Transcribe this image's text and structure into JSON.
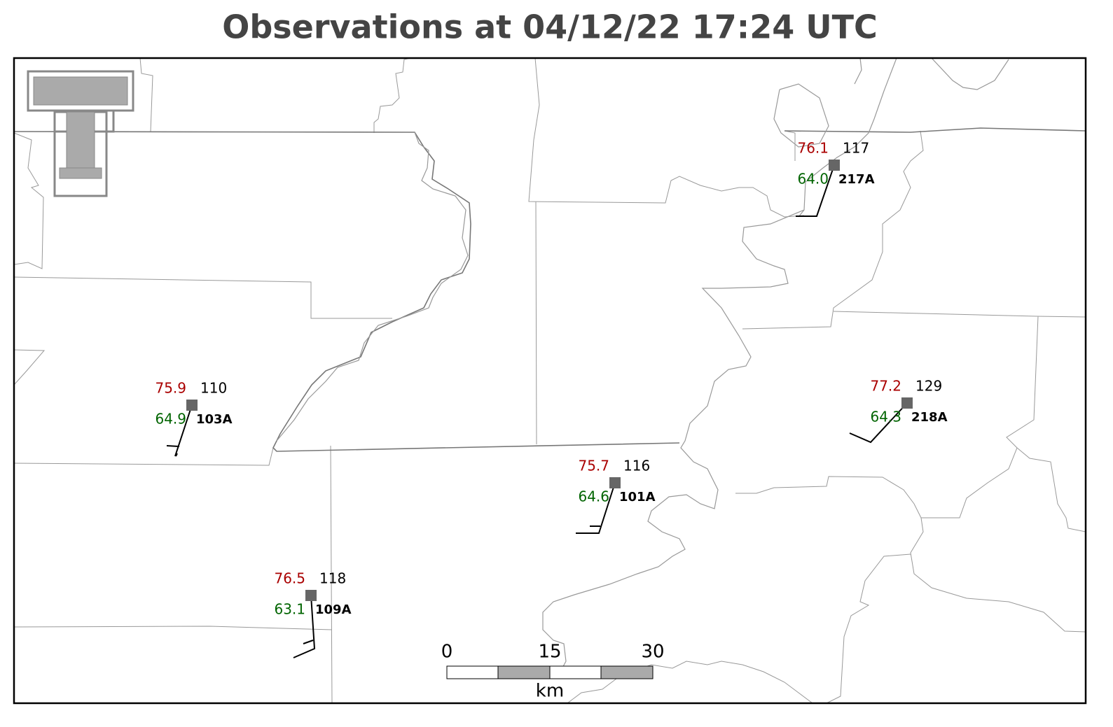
{
  "title": "Observations at 04/12/22 17:24 UTC",
  "stations": [
    {
      "id": "217A",
      "temperature": "76.1",
      "dewpoint": "64.0",
      "value": "117"
    },
    {
      "id": "103A",
      "temperature": "75.9",
      "dewpoint": "64.9",
      "value": "110"
    },
    {
      "id": "218A",
      "temperature": "77.2",
      "dewpoint": "64.3",
      "value": "129"
    },
    {
      "id": "101A",
      "temperature": "75.7",
      "dewpoint": "64.6",
      "value": "116"
    },
    {
      "id": "109A",
      "temperature": "76.5",
      "dewpoint": "63.1",
      "value": "118"
    }
  ],
  "scale_bar": {
    "labels": [
      0,
      15,
      30
    ],
    "unit": "km"
  }
}
